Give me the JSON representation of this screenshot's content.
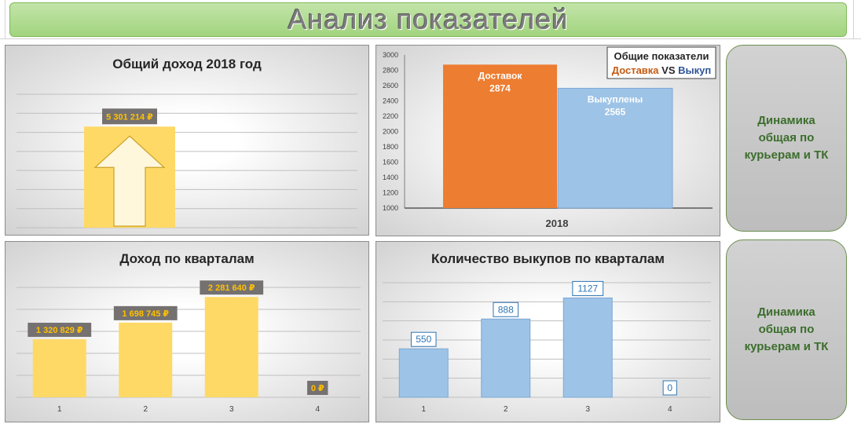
{
  "header": {
    "title": "Анализ показателей"
  },
  "side_buttons": [
    {
      "label": "Динамика общая по курьерам и ТК"
    },
    {
      "label": "Динамика общая по курьерам и ТК"
    }
  ],
  "chart_data": [
    {
      "type": "bar",
      "title": "Общий доход 2018 год",
      "categories": [
        ""
      ],
      "values": [
        5301214
      ],
      "data_labels": [
        "5 301 214 ₽"
      ],
      "ylim": [
        0,
        7000000
      ],
      "grid": true,
      "colors": {
        "bar": "#ffd966",
        "label_bg": "#757171",
        "label_text": "#ffc000"
      },
      "decoration": "up-arrow-icon"
    },
    {
      "type": "bar",
      "title": "",
      "categories": [
        "2018"
      ],
      "series": [
        {
          "name": "Доставок",
          "values": [
            2874
          ]
        },
        {
          "name": "Выкуплены",
          "values": [
            2565
          ]
        }
      ],
      "ylim": [
        1000,
        3000
      ],
      "yticks": [
        "1000",
        "1200",
        "1400",
        "1600",
        "1800",
        "2000",
        "2200",
        "2400",
        "2600",
        "2800",
        "3000"
      ],
      "legend": {
        "heading": "Общие показатели",
        "part1": "Доставка",
        "part2": " VS ",
        "part3": "Выкуп",
        "placement": "top-right"
      },
      "colors": {
        "series1": "#ed7d31",
        "series2": "#9dc3e6",
        "legend_part1": "#c55a11",
        "legend_part3": "#2f5597"
      }
    },
    {
      "type": "bar",
      "title": "Доход по кварталам",
      "categories": [
        "1",
        "2",
        "3",
        "4"
      ],
      "values": [
        1320829,
        1698745,
        2281640,
        0
      ],
      "data_labels": [
        "1 320 829 ₽",
        "1 698 745 ₽",
        "2 281 640 ₽",
        "0 ₽"
      ],
      "ylim": [
        0,
        2500000
      ],
      "grid": true,
      "colors": {
        "bar": "#ffd966",
        "label_bg": "#757171",
        "label_text": "#ffc000"
      }
    },
    {
      "type": "bar",
      "title": "Количество выкупов по кварталам",
      "categories": [
        "1",
        "2",
        "3",
        "4"
      ],
      "values": [
        550,
        888,
        1127,
        0
      ],
      "data_labels": [
        "550",
        "888",
        "1127",
        "0"
      ],
      "ylim": [
        0,
        1300
      ],
      "grid": true,
      "colors": {
        "bar": "#9dc3e6",
        "label_border": "#2e75b6",
        "label_text": "#2e75b6"
      }
    }
  ]
}
